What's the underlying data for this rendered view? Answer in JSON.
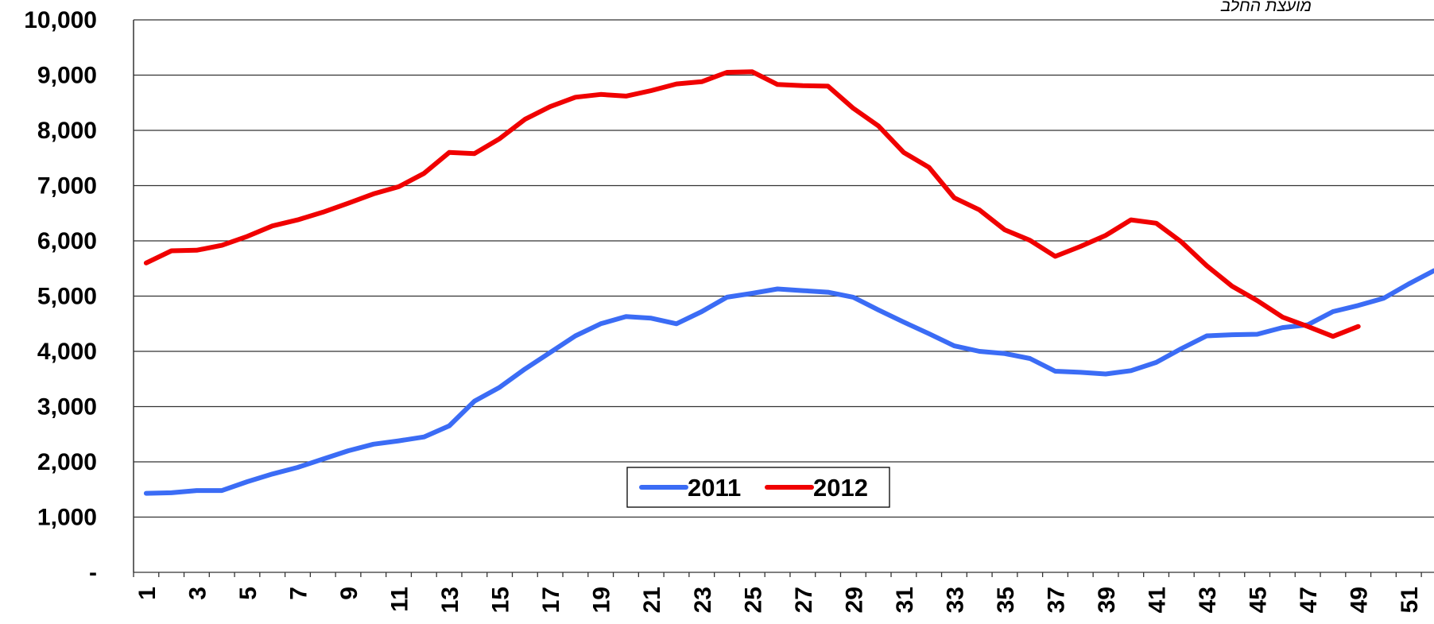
{
  "chart_data": {
    "type": "line",
    "source": "מועצת החלב",
    "categories": [
      "1",
      null,
      "3",
      null,
      "5",
      null,
      "7",
      null,
      "9",
      null,
      "11",
      null,
      "13",
      null,
      "15",
      null,
      "17",
      null,
      "19",
      null,
      "21",
      null,
      "23",
      null,
      "25",
      null,
      "27",
      null,
      "29",
      null,
      "31",
      null,
      "33",
      null,
      "35",
      null,
      "37",
      null,
      "39",
      null,
      "41",
      null,
      "43",
      null,
      "45",
      null,
      "47",
      null,
      "49",
      null,
      "51",
      null
    ],
    "series": [
      {
        "name": "2011",
        "color": "#3b6cf5",
        "values": [
          1430,
          1440,
          1480,
          1480,
          1640,
          1780,
          1900,
          2050,
          2200,
          2320,
          2380,
          2450,
          2650,
          3100,
          3350,
          3680,
          3980,
          4280,
          4500,
          4630,
          4600,
          4500,
          4720,
          4980,
          5050,
          5130,
          5100,
          5070,
          4980,
          4750,
          4530,
          4320,
          4100,
          4000,
          3960,
          3870,
          3640,
          3620,
          3590,
          3650,
          3800,
          4050,
          4280,
          4300,
          4310,
          4430,
          4480,
          4720,
          4830,
          4960,
          5220,
          5460
        ]
      },
      {
        "name": "2012",
        "color": "#f00000",
        "values": [
          5600,
          5820,
          5830,
          5920,
          6080,
          6270,
          6380,
          6520,
          6680,
          6850,
          6980,
          7220,
          7600,
          7580,
          7850,
          8200,
          8430,
          8600,
          8650,
          8620,
          8720,
          8840,
          8880,
          9050,
          9060,
          8830,
          8810,
          8800,
          8400,
          8080,
          7600,
          7330,
          6780,
          6560,
          6200,
          6010,
          5720,
          5900,
          6100,
          6380,
          6320,
          5980,
          5550,
          5180,
          4920,
          4620,
          4450,
          4270,
          4450,
          null,
          null,
          null
        ]
      }
    ],
    "ylim": [
      0,
      10000
    ],
    "yticks": [
      {
        "value": 0,
        "label": "-"
      },
      {
        "value": 1000,
        "label": "1,000"
      },
      {
        "value": 2000,
        "label": "2,000"
      },
      {
        "value": 3000,
        "label": "3,000"
      },
      {
        "value": 4000,
        "label": "4,000"
      },
      {
        "value": 5000,
        "label": "5,000"
      },
      {
        "value": 6000,
        "label": "6,000"
      },
      {
        "value": 7000,
        "label": "7,000"
      },
      {
        "value": 8000,
        "label": "8,000"
      },
      {
        "value": 9000,
        "label": "9,000"
      },
      {
        "value": 10000,
        "label": "10,000"
      }
    ],
    "grid": true
  }
}
